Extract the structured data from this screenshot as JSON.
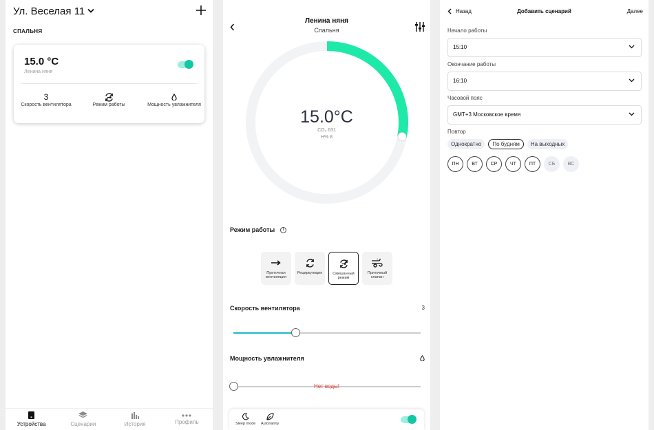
{
  "screen1": {
    "address": "Ул. Веселая 11",
    "room_label": "СПАЛЬНЯ",
    "card": {
      "temperature": "15.0 °C",
      "device_name": "Ленина няня",
      "power_on": true,
      "stats": [
        {
          "value": "3",
          "label": "Скорость вентилятора"
        },
        {
          "icon": "mixed-mode-icon",
          "label": "Режим работы"
        },
        {
          "icon": "droplet-icon",
          "label": "Мощность увлажнителя"
        }
      ]
    },
    "tabs": [
      {
        "label": "Устройства",
        "icon": "device-icon",
        "active": true
      },
      {
        "label": "Сценарии",
        "icon": "layers-icon",
        "active": false
      },
      {
        "label": "История",
        "icon": "bar-chart-icon",
        "active": false
      },
      {
        "label": "Профиль",
        "icon": "more-dots-icon",
        "active": false
      }
    ]
  },
  "screen2": {
    "title": "Ленина няня",
    "subtitle": "Спальня",
    "temperature": "15.0°C",
    "co2": "CO₂ 631",
    "humidity": "H% 8",
    "dial_fraction": 0.28,
    "mode_label": "Режим работы",
    "modes": [
      {
        "label": "Приточная вентиляция",
        "icon": "arrow-right-icon",
        "active": false
      },
      {
        "label": "Рециркуляция",
        "icon": "recirculation-icon",
        "active": false
      },
      {
        "label": "Смешанный режим",
        "icon": "mixed-mode-icon",
        "active": true
      },
      {
        "label": "Приточный клапан",
        "icon": "wind-valve-icon",
        "active": false
      }
    ],
    "fan_speed_label": "Скорость вентилятора",
    "fan_speed_value": "3",
    "fan_speed_fraction": 0.33,
    "humidifier_label": "Мощность увлажнителя",
    "humidifier_fraction": 0,
    "no_water": "Нет воды!",
    "sleep_mode": "Sleep mode",
    "autonanny": "Autonanny",
    "autonanny_on": true,
    "accent_color": "#13c7a3"
  },
  "screen3": {
    "back": "Назад",
    "title": "Добавить сценарий",
    "next": "Далее",
    "start_label": "Начало работы",
    "start_value": "15:10",
    "end_label": "Окончание работы",
    "end_value": "16:10",
    "tz_label": "Часовой пояс",
    "tz_value": "GMT+3 Московское время",
    "repeat_label": "Повтор",
    "repeat_options": [
      "Однократно",
      "По будням",
      "На выходных"
    ],
    "repeat_selected": "По будням",
    "days": [
      {
        "label": "ПН",
        "on": true
      },
      {
        "label": "ВТ",
        "on": true
      },
      {
        "label": "СР",
        "on": true
      },
      {
        "label": "ЧТ",
        "on": true
      },
      {
        "label": "ПТ",
        "on": true
      },
      {
        "label": "СБ",
        "on": false
      },
      {
        "label": "ВС",
        "on": false
      }
    ]
  }
}
